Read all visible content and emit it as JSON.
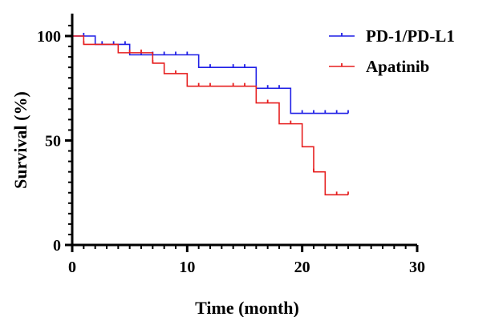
{
  "chart_data": {
    "type": "line",
    "title": "",
    "xlabel": "Time (month)",
    "ylabel": "Survival (%)",
    "xlim": [
      0,
      30
    ],
    "ylim": [
      0,
      100
    ],
    "x_ticks": [
      0,
      10,
      20,
      30
    ],
    "y_ticks": [
      0,
      50,
      100
    ],
    "x_minor_step": 1,
    "y_minor_step": 5,
    "grid": false,
    "legend_position": "top-right",
    "step_plot": true,
    "series": [
      {
        "name": "PD-1/PD-L1",
        "color": "#1f1fe6",
        "steps": [
          [
            0,
            100
          ],
          [
            2,
            96
          ],
          [
            5,
            91
          ],
          [
            11,
            85
          ],
          [
            16,
            75
          ],
          [
            19,
            63
          ],
          [
            24,
            63
          ]
        ],
        "censored": [
          [
            1,
            100
          ],
          [
            2.6,
            96
          ],
          [
            3.6,
            96
          ],
          [
            4.6,
            96
          ],
          [
            6,
            91
          ],
          [
            7,
            91
          ],
          [
            8,
            91
          ],
          [
            9,
            91
          ],
          [
            10,
            91
          ],
          [
            12,
            85
          ],
          [
            14,
            85
          ],
          [
            15,
            85
          ],
          [
            17,
            75
          ],
          [
            18,
            75
          ],
          [
            20,
            63
          ],
          [
            21,
            63
          ],
          [
            22,
            63
          ],
          [
            23,
            63
          ],
          [
            24,
            63
          ]
        ]
      },
      {
        "name": "Apatinib",
        "color": "#e61f1f",
        "steps": [
          [
            0,
            100
          ],
          [
            1,
            96
          ],
          [
            4,
            92
          ],
          [
            7,
            87
          ],
          [
            8,
            82
          ],
          [
            10,
            76
          ],
          [
            16,
            68
          ],
          [
            18,
            58
          ],
          [
            20,
            47
          ],
          [
            21,
            35
          ],
          [
            22,
            24
          ],
          [
            24,
            24
          ]
        ],
        "censored": [
          [
            1,
            96
          ],
          [
            5,
            92
          ],
          [
            6,
            92
          ],
          [
            7,
            87
          ],
          [
            9,
            82
          ],
          [
            11,
            76
          ],
          [
            12,
            76
          ],
          [
            14,
            76
          ],
          [
            15,
            76
          ],
          [
            17,
            68
          ],
          [
            19,
            58
          ],
          [
            21,
            35
          ],
          [
            23,
            24
          ],
          [
            24,
            24
          ]
        ]
      }
    ]
  }
}
